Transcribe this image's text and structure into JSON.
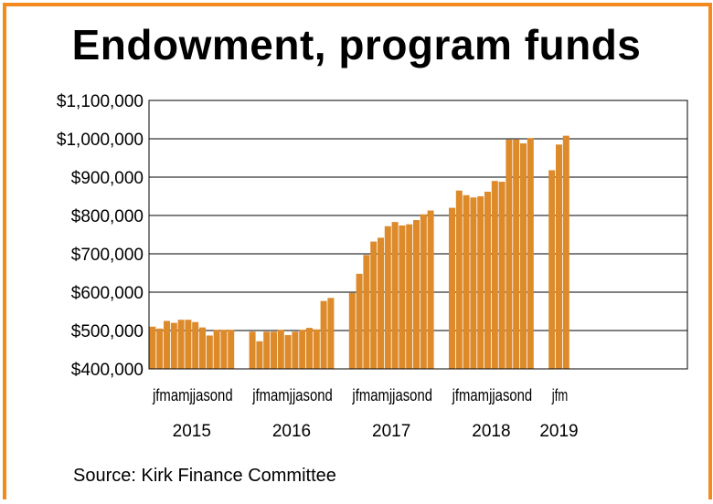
{
  "chart_data": {
    "type": "bar",
    "title": "Endowment, program funds",
    "source": "Source: Kirk Finance Committee",
    "xlabel": "",
    "ylabel": "",
    "ylim": [
      400000,
      1100000
    ],
    "yticks": [
      "$1,100,000",
      "$1,000,000",
      "$900,000",
      "$800,000",
      "$700,000",
      "$600,000",
      "$500,000",
      "$400,000"
    ],
    "ytick_values": [
      1100000,
      1000000,
      900000,
      800000,
      700000,
      600000,
      500000,
      400000
    ],
    "grid": true,
    "bar_color": "#dd8a2a",
    "groups": [
      {
        "year": "2015",
        "month_labels": "jfmamjjasond",
        "values": [
          510000,
          505000,
          525000,
          520000,
          528000,
          528000,
          522000,
          508000,
          487000,
          502000,
          502000,
          502000
        ]
      },
      {
        "year": "2016",
        "month_labels": "jfmamjjasond",
        "values": [
          497000,
          472000,
          497000,
          497000,
          502000,
          488000,
          497000,
          502000,
          507000,
          503000,
          577000,
          585000
        ]
      },
      {
        "year": "2017",
        "month_labels": "jfmamjjasond",
        "values": [
          598000,
          648000,
          697000,
          732000,
          742000,
          772000,
          783000,
          774000,
          777000,
          788000,
          803000,
          813000
        ]
      },
      {
        "year": "2018",
        "month_labels": "jfmamjjasond",
        "values": [
          820000,
          865000,
          853000,
          847000,
          850000,
          862000,
          890000,
          888000,
          998000,
          998000,
          988000,
          1002000
        ]
      },
      {
        "year": "2019",
        "month_labels": "jfm",
        "values": [
          918000,
          985000,
          1008000
        ]
      }
    ]
  }
}
